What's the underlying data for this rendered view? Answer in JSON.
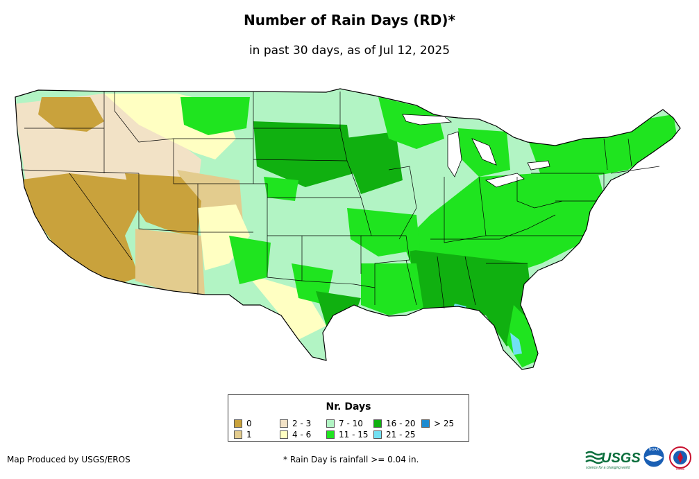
{
  "title": "Number of Rain Days (RD)*",
  "subtitle": "in past 30 days, as of Jul 12, 2025",
  "legend": {
    "title": "Nr. Days",
    "items": [
      {
        "label": "0",
        "color": "#c9a23c"
      },
      {
        "label": "1",
        "color": "#e3cc8e"
      },
      {
        "label": "2 - 3",
        "color": "#f2e2c6"
      },
      {
        "label": "4 - 6",
        "color": "#ffffc2"
      },
      {
        "label": "7 - 10",
        "color": "#b2f4c4"
      },
      {
        "label": "11 - 15",
        "color": "#1fe41f"
      },
      {
        "label": "16 - 20",
        "color": "#10b010"
      },
      {
        "label": "21 - 25",
        "color": "#72e0f2"
      },
      {
        "label": "> 25",
        "color": "#1b8ad0"
      }
    ]
  },
  "credit": "Map Produced by USGS/EROS",
  "footnote": "* Rain Day is rainfall >= 0.04 in.",
  "logos": {
    "usgs": {
      "text": "USGS",
      "tagline": "science for a changing world"
    },
    "noaa": {
      "text": "NOAA"
    },
    "nws": {
      "text": "NWS"
    }
  }
}
